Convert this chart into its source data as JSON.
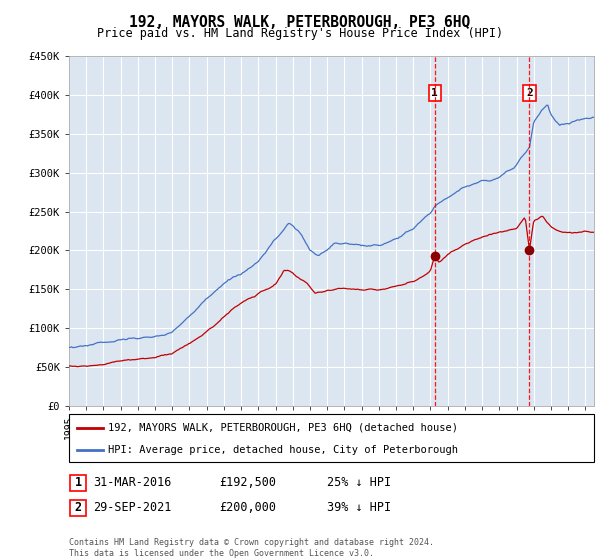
{
  "title": "192, MAYORS WALK, PETERBOROUGH, PE3 6HQ",
  "subtitle": "Price paid vs. HM Land Registry's House Price Index (HPI)",
  "background_color": "#dce6f1",
  "plot_bg_color": "#dce6f1",
  "grid_color": "#ffffff",
  "hpi_color": "#4472c4",
  "price_color": "#c00000",
  "marker_color": "#8b0000",
  "sale1_date_num": 2016.25,
  "sale1_price": 192500,
  "sale2_date_num": 2021.75,
  "sale2_price": 200000,
  "ylim": [
    0,
    450000
  ],
  "xlim_start": 1995.0,
  "xlim_end": 2025.5,
  "ytick_vals": [
    0,
    50000,
    100000,
    150000,
    200000,
    250000,
    300000,
    350000,
    400000,
    450000
  ],
  "ytick_labels": [
    "£0",
    "£50K",
    "£100K",
    "£150K",
    "£200K",
    "£250K",
    "£300K",
    "£350K",
    "£400K",
    "£450K"
  ],
  "xtick_vals": [
    1995,
    1996,
    1997,
    1998,
    1999,
    2000,
    2001,
    2002,
    2003,
    2004,
    2005,
    2006,
    2007,
    2008,
    2009,
    2010,
    2011,
    2012,
    2013,
    2014,
    2015,
    2016,
    2017,
    2018,
    2019,
    2020,
    2021,
    2022,
    2023,
    2024,
    2025
  ],
  "legend_label_red": "192, MAYORS WALK, PETERBOROUGH, PE3 6HQ (detached house)",
  "legend_label_blue": "HPI: Average price, detached house, City of Peterborough",
  "annotation1_label": "1",
  "annotation1_date": "31-MAR-2016",
  "annotation1_price": "£192,500",
  "annotation1_hpi": "25% ↓ HPI",
  "annotation2_label": "2",
  "annotation2_date": "29-SEP-2021",
  "annotation2_price": "£200,000",
  "annotation2_hpi": "39% ↓ HPI",
  "footer": "Contains HM Land Registry data © Crown copyright and database right 2024.\nThis data is licensed under the Open Government Licence v3.0."
}
